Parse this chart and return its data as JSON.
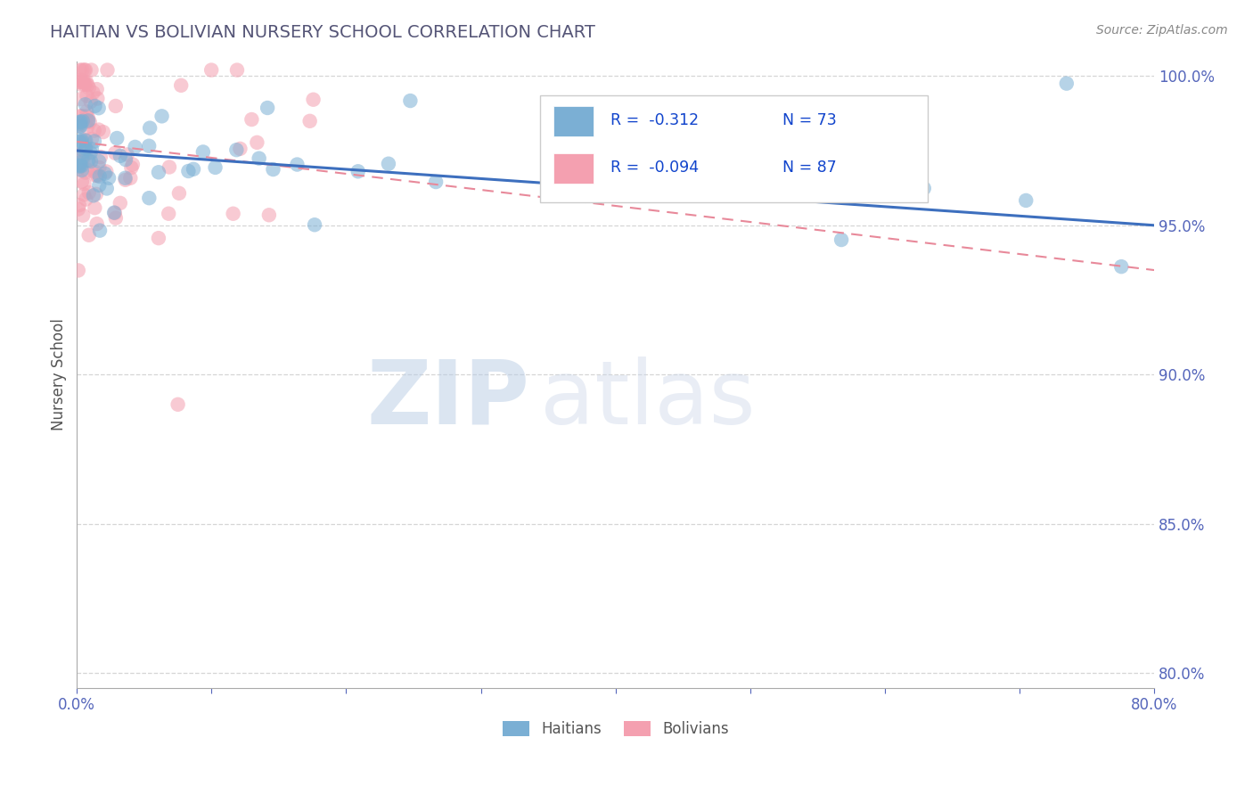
{
  "title": "HAITIAN VS BOLIVIAN NURSERY SCHOOL CORRELATION CHART",
  "source_text": "Source: ZipAtlas.com",
  "ylabel": "Nursery School",
  "xlim": [
    0.0,
    0.8
  ],
  "ylim": [
    0.795,
    1.005
  ],
  "y_ticks": [
    0.8,
    0.85,
    0.9,
    0.95,
    1.0
  ],
  "haitian_color": "#7bafd4",
  "bolivian_color": "#f4a0b0",
  "haitian_line_color": "#3d6fbe",
  "bolivian_line_color": "#e8899a",
  "haitian_R": -0.312,
  "haitian_N": 73,
  "bolivian_R": -0.094,
  "bolivian_N": 87,
  "watermark_zip": "ZIP",
  "watermark_atlas": "atlas",
  "background_color": "#ffffff",
  "grid_color": "#cccccc",
  "title_color": "#555577",
  "tick_color": "#5566bb",
  "legend_text_color": "#1144cc",
  "source_color": "#888888"
}
